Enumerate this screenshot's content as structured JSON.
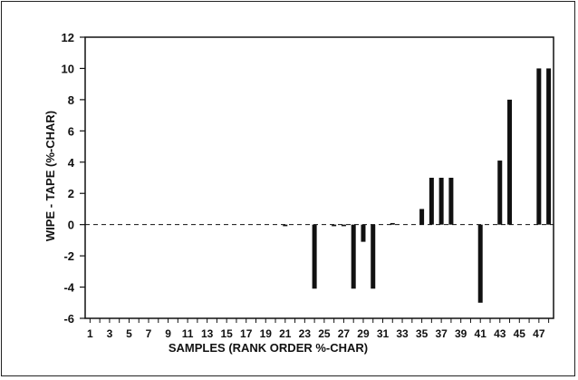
{
  "chart_data": {
    "type": "bar",
    "title": "",
    "xlabel": "SAMPLES (RANK ORDER %-CHAR)",
    "ylabel": "WIPE - TAPE (%-CHAR)",
    "ylim": [
      -6,
      12
    ],
    "yticks": [
      "12",
      "10",
      "8",
      "6",
      "4",
      "2",
      "0",
      "-2",
      "-4",
      "-6"
    ],
    "xticks": [
      "1",
      "3",
      "5",
      "7",
      "9",
      "11",
      "13",
      "15",
      "17",
      "19",
      "21",
      "23",
      "25",
      "27",
      "29",
      "31",
      "33",
      "35",
      "37",
      "39",
      "41",
      "43",
      "45",
      "47"
    ],
    "zero_line": "dashed",
    "grid": false,
    "bar_color": "#111111",
    "samples": [
      1,
      2,
      3,
      4,
      5,
      6,
      7,
      8,
      9,
      10,
      11,
      12,
      13,
      14,
      15,
      16,
      17,
      18,
      19,
      20,
      21,
      22,
      23,
      24,
      25,
      26,
      27,
      28,
      29,
      30,
      31,
      32,
      33,
      34,
      35,
      36,
      37,
      38,
      39,
      40,
      41,
      42,
      43,
      44,
      45,
      46,
      47,
      48
    ],
    "values": [
      0,
      0,
      0,
      0,
      0,
      0,
      0,
      0,
      0,
      0,
      0,
      0,
      0,
      0,
      0,
      0,
      0,
      0,
      0,
      0,
      -0.1,
      0,
      0,
      -4.1,
      0,
      -0.1,
      -0.1,
      -4.1,
      -1.1,
      -4.1,
      0,
      0.1,
      0,
      0,
      1,
      3,
      3,
      3,
      0,
      0,
      -5,
      0,
      4.1,
      8,
      0,
      0,
      10,
      10
    ]
  }
}
